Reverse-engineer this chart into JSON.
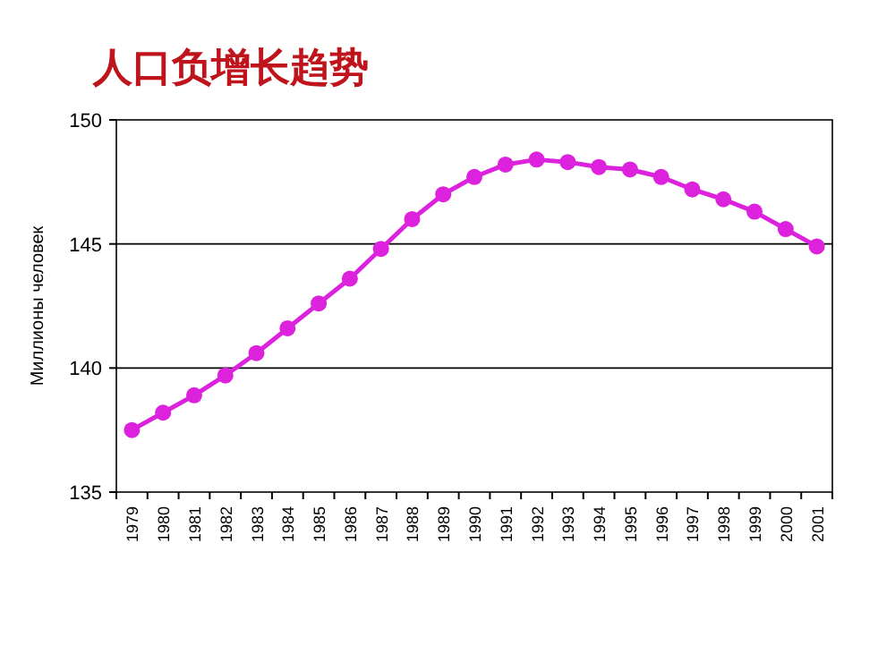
{
  "chart_data": {
    "type": "line",
    "title": "人口负增长趋势",
    "ylabel": "Миллионы человек",
    "categories": [
      "1979",
      "1980",
      "1981",
      "1982",
      "1983",
      "1984",
      "1985",
      "1986",
      "1987",
      "1988",
      "1989",
      "1990",
      "1991",
      "1992",
      "1993",
      "1994",
      "1995",
      "1996",
      "1997",
      "1998",
      "1999",
      "2000",
      "2001"
    ],
    "series": [
      {
        "color": "#dd22dd",
        "values": [
          137.5,
          138.2,
          138.9,
          139.7,
          140.6,
          141.6,
          142.6,
          143.6,
          144.8,
          146.0,
          147.0,
          147.7,
          148.2,
          148.4,
          148.3,
          148.1,
          148.0,
          147.7,
          147.2,
          146.8,
          146.3,
          145.6,
          144.9
        ]
      }
    ],
    "ylim": [
      135,
      150
    ],
    "yticks": [
      135,
      140,
      145,
      150
    ],
    "grid": "y",
    "marker": "circle",
    "line_style": "solid"
  }
}
